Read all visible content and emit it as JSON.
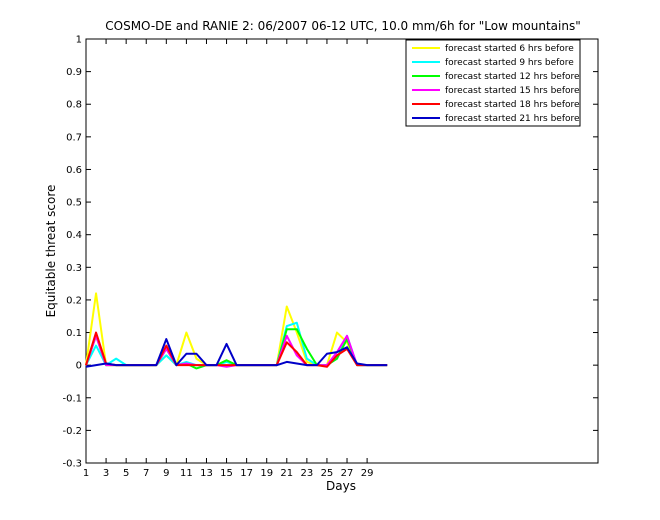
{
  "chart_data": {
    "type": "line",
    "title": "COSMO-DE and RANIE 2: 06/2007 06-12 UTC, 10.0 mm/6h for \"Low mountains\"",
    "xlabel": "Days",
    "ylabel": "Equitable threat score",
    "xlim": [
      1,
      52
    ],
    "ylim": [
      -0.3,
      1
    ],
    "xticks": [
      1,
      3,
      5,
      7,
      9,
      11,
      13,
      15,
      17,
      19,
      21,
      23,
      25,
      27,
      29
    ],
    "yticks": [
      -0.3,
      -0.2,
      -0.1,
      0,
      0.1,
      0.2,
      0.3,
      0.4,
      0.5,
      0.6,
      0.7,
      0.8,
      0.9,
      1
    ],
    "ytick_labels": [
      "-0.3",
      "-0.2",
      "-0.1",
      "0",
      "0.1",
      "0.2",
      "0.3",
      "0.4",
      "0.5",
      "0.6",
      "0.7",
      "0.8",
      "0.9",
      "1"
    ],
    "grid": false,
    "legend_position": "top-right",
    "x": [
      1,
      2,
      3,
      4,
      5,
      6,
      7,
      8,
      9,
      10,
      11,
      12,
      13,
      14,
      15,
      16,
      17,
      18,
      19,
      20,
      21,
      22,
      23,
      24,
      25,
      26,
      27,
      28,
      29,
      30,
      31
    ],
    "series": [
      {
        "name": "forecast started 6 hrs before",
        "color": "#ffff00",
        "values": [
          0,
          0.22,
          0,
          0,
          0,
          0,
          0,
          0,
          0.03,
          0,
          0.1,
          0.02,
          0,
          0,
          0.015,
          0,
          0,
          0,
          0,
          0,
          0.18,
          0.1,
          0.01,
          0,
          0,
          0.1,
          0.07,
          0,
          0,
          0,
          0
        ]
      },
      {
        "name": "forecast started 9 hrs before",
        "color": "#00ffff",
        "values": [
          0,
          0.06,
          0,
          0.02,
          0,
          0,
          0,
          0,
          0.03,
          0,
          0.01,
          0,
          0,
          0,
          0.01,
          0,
          0,
          0,
          0,
          0,
          0.12,
          0.13,
          0.02,
          0,
          0,
          0.02,
          0.09,
          0,
          0,
          0,
          0
        ]
      },
      {
        "name": "forecast started 12 hrs before",
        "color": "#00ff00",
        "values": [
          0,
          0.09,
          0,
          0,
          0,
          0,
          0,
          0,
          0.05,
          0,
          0.005,
          -0.01,
          0,
          0,
          0.015,
          0,
          0,
          0,
          0,
          0,
          0.11,
          0.11,
          0.05,
          0,
          0,
          0.02,
          0.08,
          0,
          0,
          0,
          0
        ]
      },
      {
        "name": "forecast started 15 hrs before",
        "color": "#ff00ff",
        "values": [
          0,
          0.09,
          0,
          0,
          0,
          0,
          0,
          0,
          0.05,
          0,
          0.005,
          0,
          0,
          0,
          -0.005,
          0,
          0,
          0,
          0,
          0,
          0.09,
          0.03,
          0,
          0,
          0,
          0.04,
          0.09,
          0,
          0,
          0,
          0
        ]
      },
      {
        "name": "forecast started 18 hrs before",
        "color": "#ff0000",
        "values": [
          0,
          0.1,
          0.005,
          0,
          0,
          0,
          0,
          0,
          0.06,
          0,
          0,
          0,
          0,
          0,
          0,
          0,
          0,
          0,
          0,
          0,
          0.07,
          0.04,
          0,
          0,
          -0.005,
          0.03,
          0.05,
          0,
          0,
          0,
          0
        ]
      },
      {
        "name": "forecast started 21 hrs before",
        "color": "#0000c8",
        "values": [
          -0.005,
          0,
          0.005,
          0,
          0,
          0,
          0,
          0,
          0.08,
          0,
          0.035,
          0.035,
          0,
          0,
          0.065,
          0,
          0,
          0,
          0,
          0,
          0.01,
          0.005,
          0,
          0,
          0.035,
          0.04,
          0.055,
          0.005,
          0,
          0,
          0
        ]
      }
    ]
  }
}
